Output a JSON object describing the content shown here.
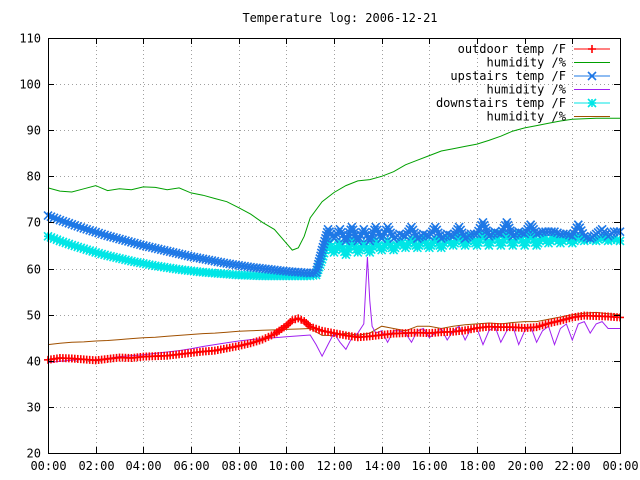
{
  "chart_data": {
    "type": "line",
    "title": "Temperature log: 2006-12-21",
    "xlabel": "",
    "ylabel": "",
    "xlim": [
      0,
      24
    ],
    "ylim": [
      20,
      110
    ],
    "grid": true,
    "legend_position": "top-right",
    "x_ticks": [
      0,
      2,
      4,
      6,
      8,
      10,
      12,
      14,
      16,
      18,
      20,
      22,
      24
    ],
    "x_tick_labels": [
      "00:00",
      "02:00",
      "04:00",
      "06:00",
      "08:00",
      "10:00",
      "12:00",
      "14:00",
      "16:00",
      "18:00",
      "20:00",
      "22:00",
      "00:00"
    ],
    "y_ticks": [
      20,
      30,
      40,
      50,
      60,
      70,
      80,
      90,
      100,
      110
    ],
    "y_tick_labels": [
      "20",
      "30",
      "40",
      "50",
      "60",
      "70",
      "80",
      "90",
      "100",
      "110"
    ],
    "series": [
      {
        "name": "outdoor temp /F",
        "color": "#ff0000",
        "marker": "plus",
        "x": [
          0,
          0.5,
          1,
          1.5,
          2,
          2.5,
          3,
          3.5,
          4,
          4.5,
          5,
          5.5,
          6,
          6.5,
          7,
          7.5,
          8,
          8.5,
          9,
          9.5,
          10,
          10.25,
          10.5,
          10.75,
          11,
          11.5,
          12,
          12.5,
          13,
          13.5,
          14,
          14.5,
          15,
          15.5,
          16,
          16.5,
          17,
          17.5,
          18,
          18.5,
          19,
          19.5,
          20,
          20.5,
          21,
          21.5,
          22,
          22.5,
          23,
          23.5,
          24
        ],
        "y": [
          40.2,
          40.6,
          40.5,
          40.3,
          40.1,
          40.4,
          40.7,
          40.6,
          40.9,
          41.0,
          41.1,
          41.4,
          41.7,
          42.0,
          42.2,
          42.7,
          43.2,
          43.8,
          44.6,
          45.8,
          47.6,
          48.8,
          49.2,
          48.6,
          47.4,
          46.5,
          46.0,
          45.5,
          45.1,
          45.3,
          45.6,
          45.9,
          46.0,
          46.1,
          46.0,
          46.2,
          46.3,
          46.6,
          47.1,
          47.4,
          47.3,
          47.3,
          47.1,
          47.3,
          48.1,
          48.7,
          49.4,
          49.8,
          49.7,
          49.6,
          49.4
        ]
      },
      {
        "name": "humidity /%",
        "color": "#00a000",
        "marker": "none",
        "x": [
          0,
          0.5,
          1,
          1.5,
          2,
          2.5,
          3,
          3.5,
          4,
          4.5,
          5,
          5.5,
          6,
          6.5,
          7,
          7.5,
          8,
          8.5,
          9,
          9.5,
          10,
          10.25,
          10.5,
          10.75,
          11,
          11.5,
          12,
          12.5,
          13,
          13.5,
          14,
          14.5,
          15,
          15.5,
          16,
          16.5,
          17,
          17.5,
          18,
          18.5,
          19,
          19.5,
          20,
          20.5,
          21,
          21.5,
          22,
          22.5,
          23,
          23.5,
          24
        ],
        "y": [
          77.5,
          76.8,
          76.6,
          77.3,
          78.0,
          76.9,
          77.3,
          77.1,
          77.7,
          77.6,
          77.1,
          77.5,
          76.4,
          75.9,
          75.2,
          74.5,
          73.2,
          71.8,
          70.0,
          68.5,
          65.5,
          64.0,
          64.5,
          67.0,
          71.0,
          74.5,
          76.5,
          78.0,
          79.0,
          79.3,
          80.0,
          81.0,
          82.5,
          83.5,
          84.5,
          85.5,
          86.0,
          86.5,
          87.0,
          87.8,
          88.7,
          89.8,
          90.5,
          91.0,
          91.5,
          92.0,
          92.4,
          92.5,
          92.6,
          92.6,
          92.6
        ]
      },
      {
        "name": "upstairs temp /F",
        "color": "#1e78e6",
        "marker": "x",
        "x": [
          0,
          0.5,
          1,
          1.5,
          2,
          2.5,
          3,
          3.5,
          4,
          4.5,
          5,
          5.5,
          6,
          6.5,
          7,
          7.5,
          8,
          8.5,
          9,
          9.5,
          10,
          10.5,
          11,
          11.25,
          11.5,
          11.75,
          12,
          12.25,
          12.5,
          12.75,
          13,
          13.25,
          13.5,
          13.75,
          14,
          14.25,
          14.5,
          14.75,
          15,
          15.25,
          15.5,
          15.75,
          16,
          16.25,
          16.5,
          16.75,
          17,
          17.25,
          17.5,
          17.75,
          18,
          18.25,
          18.5,
          18.75,
          19,
          19.25,
          19.5,
          19.75,
          20,
          20.25,
          20.5,
          20.75,
          21,
          21.25,
          21.5,
          21.75,
          22,
          22.25,
          22.5,
          22.75,
          23,
          23.25,
          23.5,
          23.75,
          24
        ],
        "y": [
          71.5,
          70.5,
          69.6,
          68.7,
          67.9,
          67.1,
          66.4,
          65.7,
          65.0,
          64.4,
          63.8,
          63.2,
          62.6,
          62.1,
          61.6,
          61.1,
          60.7,
          60.3,
          60.0,
          59.7,
          59.4,
          59.2,
          59.0,
          59.1,
          64.0,
          68.5,
          66.5,
          68.5,
          66.0,
          69.0,
          66.0,
          68.5,
          66.0,
          69.0,
          66.5,
          69.0,
          66.5,
          67.5,
          67.0,
          69.0,
          66.5,
          67.5,
          67.0,
          69.0,
          66.5,
          67.5,
          67.0,
          69.0,
          66.5,
          67.5,
          67.5,
          70.0,
          67.0,
          68.0,
          67.5,
          70.0,
          67.0,
          68.0,
          67.5,
          69.5,
          67.5,
          68.0,
          68.0,
          68.0,
          67.5,
          67.5,
          67.0,
          69.5,
          67.0,
          66.5,
          67.5,
          68.5,
          67.0,
          68.0,
          68.0
        ]
      },
      {
        "name": "humidity /%",
        "color": "#a020f0",
        "marker": "none",
        "x": [
          0,
          0.5,
          1,
          1.5,
          2,
          2.5,
          3,
          3.5,
          4,
          4.5,
          5,
          5.5,
          6,
          6.5,
          7,
          7.5,
          8,
          8.5,
          9,
          9.5,
          10,
          10.5,
          11,
          11.25,
          11.5,
          11.75,
          12,
          12.25,
          12.5,
          12.75,
          13,
          13.25,
          13.4,
          13.5,
          13.6,
          13.75,
          14,
          14.25,
          14.5,
          14.75,
          15,
          15.25,
          15.5,
          15.75,
          16,
          16.25,
          16.5,
          16.75,
          17,
          17.25,
          17.5,
          17.75,
          18,
          18.25,
          18.5,
          18.75,
          19,
          19.25,
          19.5,
          19.75,
          20,
          20.25,
          20.5,
          20.75,
          21,
          21.25,
          21.5,
          21.75,
          22,
          22.25,
          22.5,
          22.75,
          23,
          23.25,
          23.5,
          23.75,
          24
        ],
        "y": [
          39.6,
          39.9,
          40.1,
          40.3,
          40.2,
          40.5,
          40.9,
          41.1,
          41.3,
          41.6,
          41.9,
          42.2,
          42.6,
          43.1,
          43.5,
          43.9,
          44.3,
          44.6,
          44.8,
          45.0,
          45.2,
          45.4,
          45.6,
          43.5,
          41.0,
          43.5,
          46.0,
          44.0,
          42.5,
          45.0,
          46.0,
          48.0,
          62.5,
          53.0,
          47.5,
          46.0,
          46.5,
          44.0,
          46.5,
          46.5,
          46.0,
          44.0,
          46.5,
          47.0,
          45.0,
          46.0,
          47.0,
          44.5,
          46.5,
          47.5,
          44.5,
          47.0,
          47.0,
          43.5,
          46.5,
          47.5,
          44.0,
          46.5,
          47.5,
          43.5,
          46.5,
          47.5,
          44.0,
          46.5,
          47.5,
          43.5,
          47.0,
          48.0,
          44.5,
          48.0,
          48.5,
          46.0,
          48.0,
          48.5,
          47.0,
          47.0,
          47.0
        ]
      },
      {
        "name": "downstairs temp /F",
        "color": "#00e6e6",
        "marker": "star",
        "x": [
          0,
          0.5,
          1,
          1.5,
          2,
          2.5,
          3,
          3.5,
          4,
          4.5,
          5,
          5.5,
          6,
          6.5,
          7,
          7.5,
          8,
          8.5,
          9,
          9.5,
          10,
          10.5,
          11,
          11.25,
          11.5,
          11.75,
          12,
          12.25,
          12.5,
          12.75,
          13,
          13.25,
          13.5,
          13.75,
          14,
          14.25,
          14.5,
          14.75,
          15,
          15.25,
          15.5,
          15.75,
          16,
          16.25,
          16.5,
          16.75,
          17,
          17.25,
          17.5,
          17.75,
          18,
          18.25,
          18.5,
          18.75,
          19,
          19.25,
          19.5,
          19.75,
          20,
          20.25,
          20.5,
          20.75,
          21,
          21.25,
          21.5,
          21.75,
          22,
          22.25,
          22.5,
          22.75,
          23,
          23.25,
          23.5,
          23.75,
          24
        ],
        "y": [
          67.0,
          66.0,
          65.1,
          64.3,
          63.5,
          62.8,
          62.2,
          61.6,
          61.1,
          60.6,
          60.2,
          59.8,
          59.5,
          59.2,
          59.0,
          58.8,
          58.6,
          58.5,
          58.4,
          58.4,
          58.4,
          58.4,
          58.4,
          58.6,
          62.0,
          66.0,
          63.5,
          65.5,
          63.0,
          66.0,
          63.5,
          65.5,
          63.5,
          66.0,
          64.0,
          66.0,
          64.0,
          66.0,
          64.5,
          66.5,
          64.5,
          66.5,
          64.5,
          66.5,
          64.5,
          66.5,
          65.0,
          67.0,
          65.0,
          67.0,
          65.0,
          67.5,
          65.0,
          67.5,
          65.0,
          67.5,
          65.0,
          67.5,
          65.0,
          67.5,
          65.0,
          67.0,
          65.5,
          67.0,
          65.5,
          67.0,
          65.5,
          67.0,
          66.0,
          66.5,
          66.0,
          67.0,
          66.0,
          66.5,
          66.0
        ]
      },
      {
        "name": "humidity /%",
        "color": "#a05000",
        "marker": "none",
        "x": [
          0,
          0.5,
          1,
          1.5,
          2,
          2.5,
          3,
          3.5,
          4,
          4.5,
          5,
          5.5,
          6,
          6.5,
          7,
          7.5,
          8,
          8.5,
          9,
          9.5,
          10,
          10.5,
          11,
          11.5,
          12,
          12.5,
          13,
          13.5,
          14,
          14.5,
          15,
          15.5,
          16,
          16.5,
          17,
          17.5,
          18,
          18.5,
          19,
          19.5,
          20,
          20.5,
          21,
          21.5,
          22,
          22.5,
          23,
          23.5,
          24
        ],
        "y": [
          43.5,
          43.8,
          44.0,
          44.1,
          44.3,
          44.4,
          44.6,
          44.8,
          45.0,
          45.1,
          45.3,
          45.5,
          45.7,
          45.9,
          46.0,
          46.2,
          46.4,
          46.5,
          46.6,
          46.7,
          46.8,
          46.9,
          47.0,
          45.5,
          45.5,
          46.0,
          45.5,
          46.0,
          47.5,
          47.0,
          46.5,
          47.5,
          47.5,
          47.0,
          47.5,
          47.8,
          48.0,
          48.2,
          48.0,
          48.3,
          48.5,
          48.5,
          49.0,
          49.5,
          50.0,
          50.3,
          50.5,
          50.2,
          50.0
        ]
      }
    ]
  }
}
